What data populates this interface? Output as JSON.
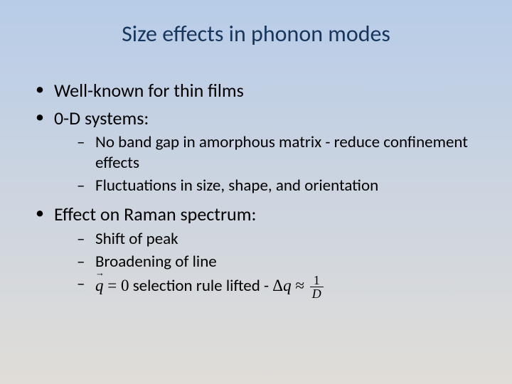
{
  "slide": {
    "title": "Size effects in phonon modes",
    "background_gradient_top": "#b8cce8",
    "background_gradient_bottom": "#e0ddd8",
    "title_color": "#17365d",
    "title_fontsize": 32,
    "body_fontsize_l1": 26,
    "body_fontsize_l2": 23,
    "bullets": [
      {
        "text": "Well-known for thin films",
        "children": []
      },
      {
        "text": "0-D systems:",
        "children": [
          {
            "text": "No band gap in amorphous matrix -  reduce confinement effects"
          },
          {
            "text": "Fluctuations in size, shape, and orientation"
          }
        ]
      },
      {
        "text": "Effect on Raman spectrum:",
        "children": [
          {
            "text": "Shift of peak"
          },
          {
            "text": "Broadening of line"
          },
          {
            "prefix": "",
            "formula_q0": "q = 0",
            "mid": "   selection rule lifted - ",
            "formula_dq": "Δq ≈ 1/D",
            "dq_numerator": "1",
            "dq_denominator": "D"
          }
        ]
      }
    ]
  }
}
